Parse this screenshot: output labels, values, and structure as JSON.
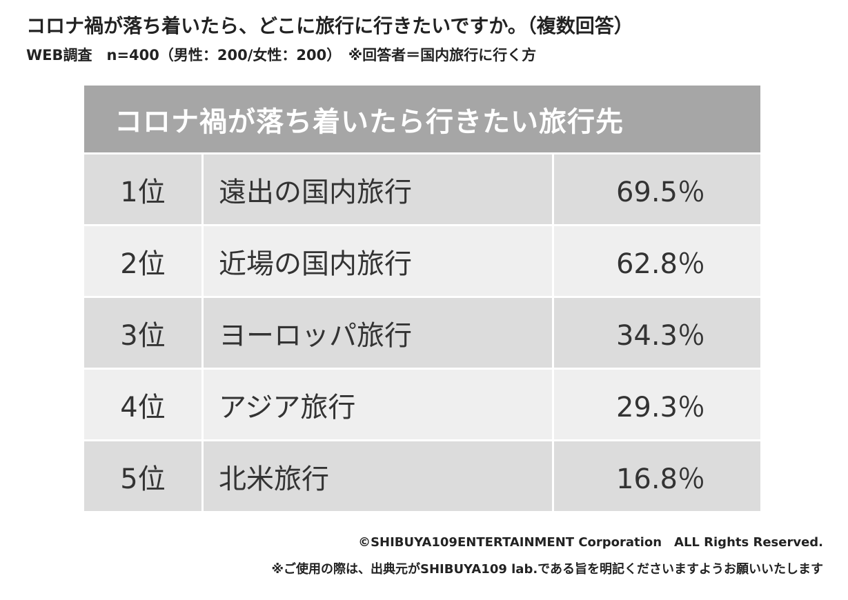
{
  "header": {
    "title": "コロナ禍が落ち着いたら、どこに旅行に行きたいですか。（複数回答）",
    "subtitle": "WEB調査　n=400（男性：200/女性：200）　※回答者＝国内旅行に行く方"
  },
  "table": {
    "title": "コロナ禍が落ち着いたら行きたい旅行先",
    "rows": [
      [
        "1位",
        "遠出の国内旅行",
        "69.5％"
      ],
      [
        "2位",
        "近場の国内旅行",
        "62.8％"
      ],
      [
        "3位",
        "ヨーロッパ旅行",
        "34.3％"
      ],
      [
        "4位",
        "アジア旅行",
        "29.3％"
      ],
      [
        "5位",
        "北米旅行",
        "16.8％"
      ]
    ]
  },
  "footer": {
    "copyright": "©SHIBUYA109ENTERTAINMENT Corporation　ALL Rights Reserved.",
    "note": "※ご使用の際は、出典元がSHIBUYA109 lab.である旨を明記くださいますようお願いいたします"
  }
}
